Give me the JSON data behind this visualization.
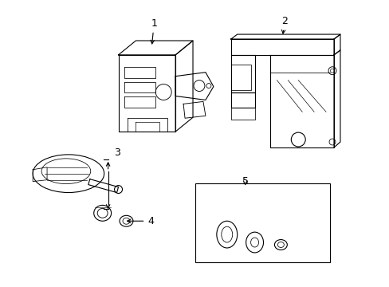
{
  "background_color": "#ffffff",
  "line_color": "#000000",
  "lw": 0.8,
  "label_fontsize": 9,
  "arrow_color": "#000000",
  "fig_w": 4.89,
  "fig_h": 3.6,
  "dpi": 100
}
